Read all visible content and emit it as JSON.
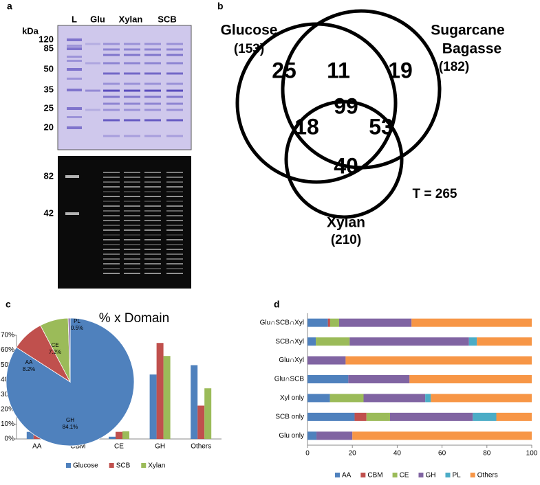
{
  "panel_labels": [
    "a",
    "b",
    "c",
    "d"
  ],
  "gel": {
    "unit": "kDa",
    "lanes": [
      "L",
      "Glu",
      "Xylan",
      "SCB"
    ],
    "upper_markers": [
      "120",
      "85",
      "50",
      "35",
      "25",
      "20"
    ],
    "lower_markers": [
      "82",
      "42"
    ]
  },
  "venn": {
    "sets": [
      {
        "name": [
          "Glucose"
        ],
        "total": "(153)"
      },
      {
        "name": [
          "Sugarcane",
          "Bagasse"
        ],
        "total": "(182)"
      },
      {
        "name": [
          "Xylan"
        ],
        "total": "(210)"
      }
    ],
    "regions": [
      25,
      11,
      19,
      99,
      18,
      53,
      40
    ],
    "total": "T = 265"
  },
  "chart_data": [
    {
      "type": "bar",
      "title": "% x Domain",
      "categories": [
        "AA",
        "CBM",
        "CE",
        "GH",
        "Others"
      ],
      "series": [
        {
          "name": "Glucose",
          "color": "#4f81bd",
          "values": [
            4.8,
            0.4,
            1.5,
            43.5,
            49.8
          ]
        },
        {
          "name": "SCB",
          "color": "#c0504d",
          "values": [
            6.5,
            0.6,
            4.8,
            64.8,
            22.5
          ]
        },
        {
          "name": "Xylan",
          "color": "#9bbb59",
          "values": [
            3.8,
            0.1,
            5.2,
            56.0,
            34.2
          ]
        }
      ],
      "ylim": [
        0,
        70
      ],
      "yticks": [
        {
          "value": 0,
          "label": "0%"
        },
        {
          "value": 10,
          "label": "10%"
        },
        {
          "value": 20,
          "label": "20%"
        },
        {
          "value": 30,
          "label": "30%"
        },
        {
          "value": 40,
          "label": "40%"
        },
        {
          "value": 50,
          "label": "50%"
        },
        {
          "value": 60,
          "label": "60%"
        },
        {
          "value": 70,
          "label": "70%"
        }
      ],
      "grid": false,
      "legend": "bottom"
    },
    {
      "type": "pie",
      "categories": [
        "GH",
        "AA",
        "CE",
        "PL"
      ],
      "values": [
        84.1,
        8.2,
        7.2,
        0.5
      ],
      "value_labels": [
        "84.1%",
        "8.2%",
        "7.2%",
        "0.5%"
      ],
      "colors": [
        "#4f81bd",
        "#c0504d",
        "#9bbb59",
        "#8064a2"
      ]
    },
    {
      "type": "stacked_barh",
      "categories": [
        "Glu∩SCB∩Xyl",
        "SCB∩Xyl",
        "Glu∩Xyl",
        "Glu∩SCB",
        "Xyl only",
        "SCB only",
        "Glu only"
      ],
      "series": [
        {
          "name": "AA",
          "color": "#4f81bd",
          "values": [
            9.1,
            3.7,
            0,
            18.2,
            10,
            21,
            4
          ]
        },
        {
          "name": "CBM",
          "color": "#c0504d",
          "values": [
            1,
            0,
            0,
            0,
            0,
            5.3,
            0
          ]
        },
        {
          "name": "CE",
          "color": "#9bbb59",
          "values": [
            4,
            15.1,
            0,
            0,
            15,
            10.5,
            0
          ]
        },
        {
          "name": "GH",
          "color": "#8064a2",
          "values": [
            32.3,
            53.2,
            17,
            27.3,
            27.5,
            36.9,
            16
          ]
        },
        {
          "name": "PL",
          "color": "#4bacc6",
          "values": [
            0,
            3.5,
            0,
            0,
            2.5,
            10.5,
            0
          ]
        },
        {
          "name": "Others",
          "color": "#f79646",
          "values": [
            53.6,
            24.5,
            83,
            54.5,
            45,
            15.8,
            80
          ]
        }
      ],
      "xlim": [
        0,
        100
      ],
      "xticks": [
        0,
        20,
        40,
        60,
        80,
        100
      ],
      "grid": false,
      "legend": "bottom"
    }
  ]
}
